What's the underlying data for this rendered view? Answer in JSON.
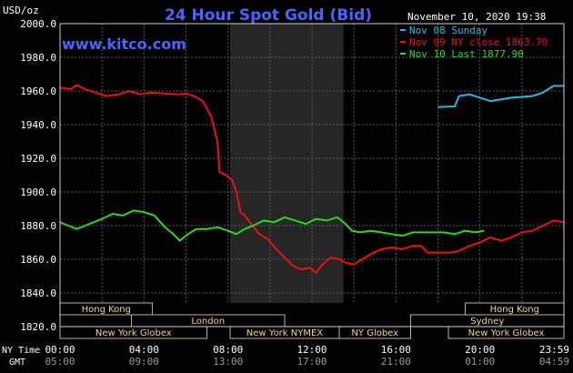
{
  "chart_data": {
    "type": "line",
    "title": "24 Hour Spot Gold (Bid)",
    "watermark": "www.kitco.com",
    "ylabel": "USD/oz",
    "datetime": "November 10, 2020 19:38",
    "ylim": [
      1820,
      2000
    ],
    "yticks": [
      "2000.0",
      "1980.0",
      "1960.0",
      "1940.0",
      "1920.0",
      "1900.0",
      "1880.0",
      "1860.0",
      "1840.0",
      "1820.0"
    ],
    "xlim": [
      0,
      24
    ],
    "x_ticks_ny": [
      "00:00",
      "04:00",
      "08:00",
      "12:00",
      "16:00",
      "20:00",
      "23:59"
    ],
    "x_ticks_gmt": [
      "05:00",
      "09:00",
      "13:00",
      "17:00",
      "21:00",
      "01:00",
      "04:59"
    ],
    "x_row_labels": [
      "NY Time",
      "GMT"
    ],
    "shaded_hours": [
      8.1,
      13.5
    ],
    "grid": true,
    "legend_placement": "top-right",
    "series": [
      {
        "name": "Nov 08 Sunday",
        "color": "#22bbee",
        "points": [
          [
            18,
            1950.5
          ],
          [
            18.8,
            1950.8
          ],
          [
            19,
            1957
          ],
          [
            19.5,
            1958
          ],
          [
            20,
            1956
          ],
          [
            20.5,
            1954
          ],
          [
            21,
            1955
          ],
          [
            21.5,
            1956
          ],
          [
            22,
            1956.5
          ],
          [
            22.5,
            1957
          ],
          [
            23,
            1959
          ],
          [
            23.5,
            1963
          ],
          [
            24,
            1963
          ]
        ]
      },
      {
        "name": "Nov 09 NY close 1863.70",
        "color": "#ee1111",
        "points": [
          [
            0,
            1962
          ],
          [
            0.5,
            1961
          ],
          [
            0.8,
            1963.5
          ],
          [
            1.2,
            1961
          ],
          [
            1.7,
            1959
          ],
          [
            2.2,
            1957
          ],
          [
            2.8,
            1958
          ],
          [
            3.3,
            1960
          ],
          [
            3.8,
            1958
          ],
          [
            4.3,
            1959
          ],
          [
            5,
            1958.5
          ],
          [
            5.6,
            1958
          ],
          [
            6,
            1958.5
          ],
          [
            6.4,
            1957
          ],
          [
            6.8,
            1954
          ],
          [
            7.2,
            1945
          ],
          [
            7.5,
            1930
          ],
          [
            7.6,
            1912
          ],
          [
            7.9,
            1910
          ],
          [
            8.2,
            1907
          ],
          [
            8.4,
            1900
          ],
          [
            8.6,
            1888
          ],
          [
            8.8,
            1886
          ],
          [
            9.1,
            1881
          ],
          [
            9.5,
            1875
          ],
          [
            9.9,
            1872
          ],
          [
            10.3,
            1866
          ],
          [
            10.7,
            1861
          ],
          [
            11.1,
            1856
          ],
          [
            11.5,
            1854
          ],
          [
            11.9,
            1855
          ],
          [
            12.2,
            1852
          ],
          [
            12.5,
            1857
          ],
          [
            12.9,
            1861
          ],
          [
            13.3,
            1860
          ],
          [
            13.6,
            1858
          ],
          [
            14,
            1857
          ],
          [
            14.4,
            1860
          ],
          [
            14.8,
            1863
          ],
          [
            15.3,
            1866
          ],
          [
            15.8,
            1867
          ],
          [
            16.3,
            1866
          ],
          [
            16.8,
            1868
          ],
          [
            17.2,
            1868
          ],
          [
            17.5,
            1864
          ],
          [
            18,
            1864
          ],
          [
            18.6,
            1864
          ],
          [
            19,
            1865
          ],
          [
            19.5,
            1868
          ],
          [
            20,
            1870
          ],
          [
            20.5,
            1873
          ],
          [
            21,
            1871
          ],
          [
            21.5,
            1873
          ],
          [
            22,
            1876
          ],
          [
            22.5,
            1877
          ],
          [
            23,
            1880
          ],
          [
            23.5,
            1883
          ],
          [
            24,
            1882
          ]
        ]
      },
      {
        "name": "Nov 10 Last 1877.90",
        "color": "#22dd22",
        "points": [
          [
            0,
            1882
          ],
          [
            0.4,
            1880
          ],
          [
            0.8,
            1878
          ],
          [
            1.2,
            1880
          ],
          [
            1.6,
            1882
          ],
          [
            2,
            1884
          ],
          [
            2.5,
            1887
          ],
          [
            3,
            1886
          ],
          [
            3.5,
            1889
          ],
          [
            4,
            1888
          ],
          [
            4.5,
            1886
          ],
          [
            5,
            1879
          ],
          [
            5.4,
            1875
          ],
          [
            5.7,
            1871
          ],
          [
            6.1,
            1875
          ],
          [
            6.5,
            1878
          ],
          [
            7,
            1878
          ],
          [
            7.5,
            1879
          ],
          [
            8,
            1877
          ],
          [
            8.4,
            1875
          ],
          [
            8.8,
            1878
          ],
          [
            9.2,
            1880
          ],
          [
            9.7,
            1883
          ],
          [
            10.2,
            1882
          ],
          [
            10.7,
            1885
          ],
          [
            11.2,
            1883
          ],
          [
            11.7,
            1881
          ],
          [
            12.2,
            1884
          ],
          [
            12.7,
            1883
          ],
          [
            13.2,
            1885
          ],
          [
            13.6,
            1881
          ],
          [
            13.9,
            1877
          ],
          [
            14.3,
            1876
          ],
          [
            14.8,
            1877
          ],
          [
            15.3,
            1876
          ],
          [
            15.8,
            1875
          ],
          [
            16.3,
            1874
          ],
          [
            16.8,
            1876
          ],
          [
            17.3,
            1876
          ],
          [
            17.8,
            1876
          ],
          [
            18.3,
            1876
          ],
          [
            18.8,
            1875
          ],
          [
            19.3,
            1877
          ],
          [
            19.8,
            1876
          ],
          [
            20.2,
            1877
          ]
        ]
      }
    ],
    "market_rows": [
      [
        {
          "label": "Hong Kong",
          "start": 0,
          "end": 4.4
        },
        {
          "label": "Hong Kong",
          "start": 19.3,
          "end": 24
        }
      ],
      [
        {
          "label": "London",
          "start": 3.4,
          "end": 10.7
        },
        {
          "label": "Sydney",
          "start": 16.7,
          "end": 24
        }
      ],
      [
        {
          "label": "New York Globex",
          "start": 0,
          "end": 7.0
        },
        {
          "label": "New York NYMEX",
          "start": 8.1,
          "end": 13.3
        },
        {
          "label": "NY Globex",
          "start": 13.3,
          "end": 16.7
        },
        {
          "label": "New York Globex",
          "start": 18.5,
          "end": 24
        }
      ]
    ]
  }
}
